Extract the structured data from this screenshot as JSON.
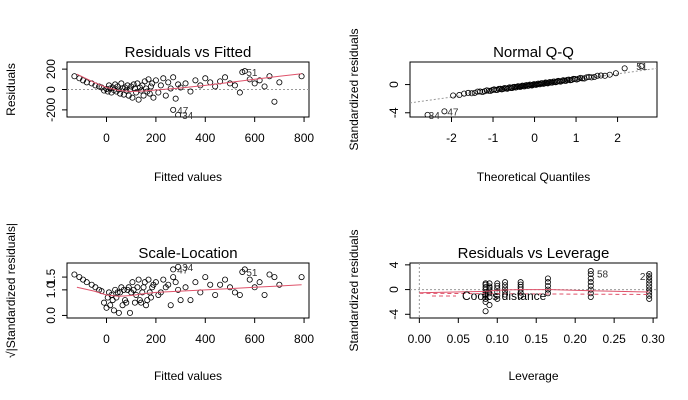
{
  "chart_data": [
    {
      "type": "scatter",
      "title": "Residuals vs Fitted",
      "xlabel": "Fitted values",
      "ylabel": "Residuals",
      "xlim": [
        -160,
        820
      ],
      "ylim": [
        -270,
        270
      ],
      "xticks": [
        0,
        200,
        400,
        600,
        800
      ],
      "yticks": [
        -200,
        0,
        200
      ],
      "ytick_labels": [
        "-200",
        "0",
        "200"
      ],
      "hline": {
        "y": 0,
        "style": "dotted",
        "color": "#999999"
      },
      "smooth": {
        "color": "#DF536B",
        "x": [
          -120,
          -50,
          0,
          50,
          100,
          150,
          200,
          300,
          400,
          500,
          600,
          700,
          790
        ],
        "y": [
          150,
          70,
          20,
          -10,
          -20,
          -15,
          -5,
          15,
          40,
          70,
          100,
          130,
          155
        ]
      },
      "points": {
        "x": [
          -130,
          -110,
          -95,
          -80,
          -60,
          -45,
          -30,
          -20,
          -10,
          0,
          5,
          10,
          15,
          20,
          25,
          30,
          35,
          40,
          45,
          50,
          55,
          60,
          65,
          70,
          75,
          80,
          85,
          90,
          95,
          100,
          105,
          110,
          115,
          120,
          125,
          130,
          135,
          140,
          145,
          150,
          155,
          160,
          165,
          170,
          175,
          180,
          185,
          190,
          200,
          210,
          220,
          230,
          240,
          250,
          260,
          270,
          280,
          290,
          300,
          320,
          340,
          360,
          380,
          400,
          420,
          440,
          460,
          480,
          500,
          520,
          540,
          560,
          580,
          600,
          620,
          640,
          660,
          680,
          700,
          790,
          270,
          290,
          550
        ],
        "y": [
          130,
          110,
          90,
          70,
          60,
          40,
          30,
          20,
          -10,
          5,
          -20,
          40,
          10,
          -30,
          20,
          -5,
          50,
          -20,
          30,
          0,
          -40,
          60,
          10,
          -50,
          20,
          -10,
          40,
          -60,
          0,
          30,
          -80,
          50,
          10,
          -30,
          60,
          -100,
          20,
          -10,
          40,
          -60,
          80,
          10,
          -20,
          100,
          -40,
          30,
          60,
          -80,
          90,
          -30,
          40,
          110,
          -60,
          70,
          10,
          120,
          -90,
          50,
          20,
          60,
          -20,
          90,
          40,
          110,
          70,
          30,
          80,
          120,
          60,
          40,
          -30,
          180,
          100,
          60,
          90,
          30,
          130,
          -120,
          70,
          130,
          -200,
          -250,
          170
        ],
        "labels": {
          "80": "47",
          "81": "34",
          "82": "51"
        }
      }
    },
    {
      "type": "scatter",
      "title": "Normal Q-Q",
      "xlabel": "Theoretical Quantiles",
      "ylabel": "Standardized residuals",
      "xlim": [
        -3.0,
        2.95
      ],
      "ylim": [
        -4.6,
        3.2
      ],
      "xticks": [
        -2,
        -1,
        0,
        1,
        2
      ],
      "yticks": [
        -4,
        0
      ],
      "ytick_labels": [
        "-4",
        "0"
      ],
      "reference_line": {
        "style": "dotted",
        "color": "#999999",
        "x": [
          -3.0,
          2.95
        ],
        "y": [
          -2.6,
          2.3
        ]
      },
      "qq_generated": {
        "n": 100,
        "slope": 0.78,
        "left_tail": [
          -4.3,
          -3.8
        ],
        "right_tail": [
          2.3,
          2.6
        ]
      },
      "point_labels": [
        {
          "text": "34",
          "x": -2.55,
          "y": -4.3
        },
        {
          "text": "47",
          "x": -2.1,
          "y": -3.8
        },
        {
          "text": "51",
          "x": 2.45,
          "y": 2.6
        }
      ]
    },
    {
      "type": "scatter",
      "title": "Scale-Location",
      "xlabel": "Fitted values",
      "ylabel": "√|Standardized residuals|",
      "xlim": [
        -160,
        820
      ],
      "ylim": [
        -0.1,
        2.05
      ],
      "xticks": [
        0,
        200,
        400,
        600,
        800
      ],
      "yticks": [
        0.0,
        1.0,
        1.5
      ],
      "ytick_labels": [
        "0.0",
        "1.0",
        "1.5"
      ],
      "smooth": {
        "color": "#DF536B",
        "x": [
          -120,
          -50,
          0,
          50,
          100,
          150,
          200,
          300,
          400,
          500,
          600,
          700,
          790
        ],
        "y": [
          1.1,
          0.95,
          0.8,
          0.75,
          0.78,
          0.85,
          0.9,
          0.95,
          1.0,
          1.05,
          1.1,
          1.15,
          1.2
        ]
      },
      "points": {
        "x": [
          -130,
          -110,
          -95,
          -80,
          -60,
          -45,
          -30,
          -20,
          -10,
          0,
          5,
          10,
          15,
          20,
          25,
          30,
          35,
          40,
          45,
          50,
          55,
          60,
          65,
          70,
          75,
          80,
          85,
          90,
          95,
          100,
          105,
          110,
          115,
          120,
          125,
          130,
          135,
          140,
          145,
          150,
          155,
          160,
          165,
          170,
          175,
          180,
          185,
          190,
          200,
          210,
          220,
          230,
          240,
          250,
          260,
          270,
          280,
          290,
          300,
          320,
          340,
          360,
          380,
          400,
          420,
          440,
          460,
          480,
          500,
          520,
          540,
          560,
          580,
          600,
          620,
          640,
          660,
          680,
          700,
          790,
          270,
          290,
          550
        ],
        "y": [
          1.6,
          1.5,
          1.4,
          1.3,
          1.2,
          1.1,
          1.0,
          0.95,
          0.5,
          0.3,
          0.7,
          0.9,
          0.4,
          0.8,
          0.6,
          0.2,
          1.0,
          0.7,
          0.9,
          0.1,
          0.9,
          1.1,
          0.4,
          1.0,
          0.6,
          0.5,
          1.0,
          1.1,
          0.1,
          0.9,
          1.3,
          1.0,
          0.5,
          0.8,
          1.1,
          1.4,
          0.6,
          0.5,
          0.9,
          1.1,
          1.3,
          0.4,
          0.6,
          1.4,
          0.9,
          0.7,
          1.1,
          1.2,
          1.3,
          0.8,
          0.9,
          1.4,
          1.1,
          1.2,
          0.4,
          1.5,
          1.3,
          1.0,
          0.6,
          1.1,
          0.6,
          1.3,
          0.9,
          1.5,
          1.2,
          0.8,
          1.2,
          1.4,
          1.1,
          0.9,
          0.8,
          1.8,
          1.4,
          1.1,
          1.3,
          0.8,
          1.6,
          1.5,
          1.2,
          1.5,
          1.8,
          1.9,
          1.7
        ],
        "labels": {
          "80": "47",
          "81": "34",
          "82": "51"
        }
      }
    },
    {
      "type": "scatter",
      "title": "Residuals vs Leverage",
      "xlabel": "Leverage",
      "ylabel": "Standardized residuals",
      "xlim": [
        -0.012,
        0.305
      ],
      "ylim": [
        -4.6,
        4.3
      ],
      "xticks": [
        0.0,
        0.05,
        0.1,
        0.15,
        0.2,
        0.25,
        0.3
      ],
      "xtick_labels": [
        "0.00",
        "0.05",
        "0.10",
        "0.15",
        "0.20",
        "0.25",
        "0.30"
      ],
      "yticks": [
        -4,
        0,
        4
      ],
      "ytick_labels": [
        "-4",
        "0",
        "4"
      ],
      "hline": {
        "y": 0,
        "style": "dotted",
        "color": "#999999"
      },
      "vline": {
        "x": 0,
        "style": "dotted",
        "color": "#999999"
      },
      "smooth": {
        "color": "#DF536B",
        "x": [
          0.0,
          0.085,
          0.1,
          0.13,
          0.17,
          0.22,
          0.295
        ],
        "y": [
          -0.5,
          -0.3,
          -0.1,
          0.0,
          0.0,
          -0.2,
          -0.4
        ]
      },
      "cooks_line": {
        "color": "#DF536B",
        "style": "dashed",
        "x": [
          0.0,
          0.295
        ],
        "y": [
          -0.6,
          -0.8
        ]
      },
      "legend_text": "Cook's distance",
      "legend_position": "bottom-left",
      "leverage_columns": [
        {
          "x": 0.085,
          "y": [
            -1.5,
            -1.0,
            -0.5,
            0.0,
            0.4,
            0.8,
            1.0,
            -0.8,
            -2.0,
            -3.5
          ]
        },
        {
          "x": 0.09,
          "y": [
            -1.2,
            -0.6,
            0.0,
            0.5,
            1.0,
            -2.5,
            0.3
          ]
        },
        {
          "x": 0.1,
          "y": [
            -1.0,
            -0.4,
            0.2,
            0.6,
            1.0,
            -1.5
          ]
        },
        {
          "x": 0.11,
          "y": [
            -0.8,
            -0.3,
            0.2,
            0.7,
            1.2
          ]
        },
        {
          "x": 0.13,
          "y": [
            -1.0,
            -0.5,
            0.0,
            0.4,
            0.8,
            1.2
          ]
        },
        {
          "x": 0.165,
          "y": [
            -0.6,
            0.0,
            0.6,
            1.2,
            1.8
          ]
        },
        {
          "x": 0.22,
          "y": [
            -1.2,
            -0.6,
            0.0,
            0.6,
            1.2,
            1.8,
            2.5,
            3.0
          ]
        },
        {
          "x": 0.295,
          "y": [
            -1.5,
            -1.0,
            -0.5,
            0.0,
            0.5,
            1.0,
            1.5,
            2.0,
            2.5
          ]
        }
      ],
      "point_labels": [
        {
          "text": "58",
          "x": 0.228,
          "y": 2.6
        },
        {
          "text": "27",
          "x": 0.283,
          "y": 2.2
        }
      ]
    }
  ]
}
